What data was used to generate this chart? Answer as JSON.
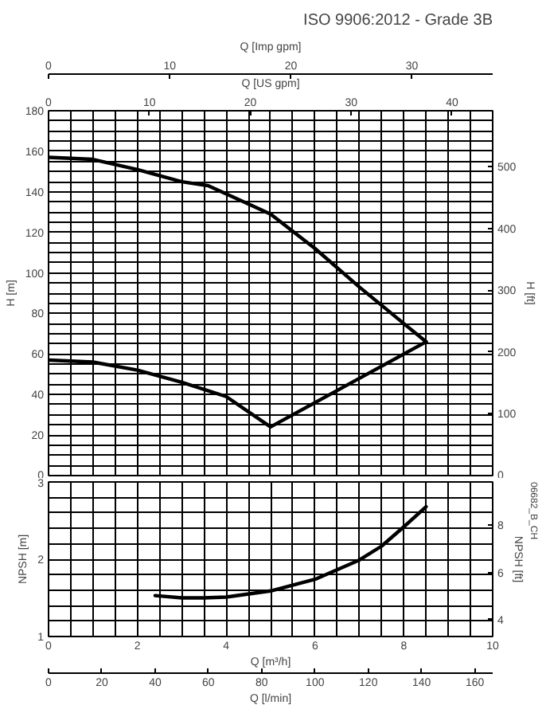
{
  "chart_data": [
    {
      "type": "line",
      "title": "ISO 9906:2012 - Grade 3B",
      "ylabel": "H [m]",
      "y2label": "H [ft]",
      "xlabel": "Q [US gpm]",
      "x2label": "Q [Imp gpm]",
      "xlim": [
        0,
        44.03
      ],
      "xticks": [
        0,
        {
          "value": 2.2,
          "label": null
        },
        {
          "value": 4.4,
          "label": null
        },
        {
          "value": 6.6,
          "label": null
        },
        {
          "value": 8.81,
          "label": null
        },
        10,
        {
          "value": 11.01,
          "label": null
        },
        {
          "value": 13.21,
          "label": null
        },
        {
          "value": 15.41,
          "label": null
        },
        {
          "value": 17.61,
          "label": null
        },
        {
          "value": 19.81,
          "label": null
        },
        20,
        {
          "value": 22.01,
          "label": null
        },
        {
          "value": 24.22,
          "label": null
        },
        {
          "value": 26.42,
          "label": null
        },
        {
          "value": 28.62,
          "label": null
        },
        30,
        {
          "value": 30.82,
          "label": null
        },
        {
          "value": 33.02,
          "label": null
        },
        {
          "value": 35.22,
          "label": null
        },
        {
          "value": 37.43,
          "label": null
        },
        {
          "value": 39.63,
          "label": null
        },
        40,
        {
          "value": 41.83,
          "label": null
        },
        {
          "value": 44.03,
          "label": null
        }
      ],
      "ylim": [
        0,
        180
      ],
      "yticks": [
        0,
        {
          "value": 5,
          "label": null
        },
        {
          "value": 10,
          "label": null
        },
        {
          "value": 15,
          "label": null
        },
        20,
        {
          "value": 25,
          "label": null
        },
        {
          "value": 30,
          "label": null
        },
        {
          "value": 35,
          "label": null
        },
        40,
        {
          "value": 45,
          "label": null
        },
        {
          "value": 50,
          "label": null
        },
        {
          "value": 55,
          "label": null
        },
        60,
        {
          "value": 65,
          "label": null
        },
        {
          "value": 70,
          "label": null
        },
        {
          "value": 75,
          "label": null
        },
        80,
        {
          "value": 85,
          "label": null
        },
        {
          "value": 90,
          "label": null
        },
        {
          "value": 95,
          "label": null
        },
        100,
        {
          "value": 105,
          "label": null
        },
        {
          "value": 110,
          "label": null
        },
        {
          "value": 115,
          "label": null
        },
        120,
        {
          "value": 125,
          "label": null
        },
        {
          "value": 130,
          "label": null
        },
        {
          "value": 135,
          "label": null
        },
        140,
        {
          "value": 145,
          "label": null
        },
        {
          "value": 150,
          "label": null
        },
        {
          "value": 155,
          "label": null
        },
        160,
        {
          "value": 165,
          "label": null
        },
        {
          "value": 170,
          "label": null
        },
        {
          "value": 175,
          "label": null
        },
        180
      ],
      "y2lim": [
        0,
        590.55
      ],
      "y2ticks": [
        0,
        100,
        200,
        300,
        400,
        500
      ],
      "x2lim": [
        0,
        36.66
      ],
      "x2ticks": [
        0,
        10,
        20,
        30
      ],
      "grid": true,
      "series": [
        {
          "color": "#000000",
          "x": [
            0,
            4.4,
            8.81,
            13.21,
            15.85,
            22.01,
            26.42,
            30.82,
            35.22,
            37.43
          ],
          "values": [
            157,
            156,
            151,
            145,
            143,
            129,
            112,
            93,
            75,
            66
          ]
        },
        {
          "color": "#000000",
          "x": [
            0,
            4.4,
            8.81,
            13.21,
            17.61,
            22.01,
            30.82,
            37.43
          ],
          "values": [
            57,
            56,
            52,
            46,
            39,
            24,
            48,
            66
          ]
        }
      ]
    },
    {
      "type": "line",
      "ylabel": "NPSH [m]",
      "y2label": "NPSH [ft]",
      "xlabel": "Q [m³/h]",
      "x2label": "Q [l/min]",
      "xlim": [
        0,
        10
      ],
      "xticks": [
        0,
        {
          "value": 0.5,
          "label": null
        },
        {
          "value": 1,
          "label": null
        },
        {
          "value": 1.5,
          "label": null
        },
        2,
        {
          "value": 2.5,
          "label": null
        },
        {
          "value": 3,
          "label": null
        },
        {
          "value": 3.5,
          "label": null
        },
        4,
        {
          "value": 4.5,
          "label": null
        },
        {
          "value": 5,
          "label": null
        },
        {
          "value": 5.5,
          "label": null
        },
        6,
        {
          "value": 6.5,
          "label": null
        },
        {
          "value": 7,
          "label": null
        },
        {
          "value": 7.5,
          "label": null
        },
        8,
        {
          "value": 8.5,
          "label": null
        },
        {
          "value": 9,
          "label": null
        },
        {
          "value": 9.5,
          "label": null
        },
        10
      ],
      "ylim": [
        1,
        3
      ],
      "yticks": [
        1,
        {
          "value": 1.2,
          "label": null
        },
        {
          "value": 1.4,
          "label": null
        },
        {
          "value": 1.6,
          "label": null
        },
        {
          "value": 1.8,
          "label": null
        },
        2,
        {
          "value": 2.2,
          "label": null
        },
        {
          "value": 2.4,
          "label": null
        },
        {
          "value": 2.6,
          "label": null
        },
        {
          "value": 2.8,
          "label": null
        },
        3
      ],
      "y2lim": [
        3.281,
        9.843
      ],
      "y2ticks": [
        4,
        6,
        8
      ],
      "x2lim": [
        0,
        166.67
      ],
      "x2ticks": [
        0,
        20,
        40,
        60,
        80,
        100,
        120,
        140,
        160
      ],
      "grid": true,
      "annotations": [
        "06682_B_CH"
      ],
      "series": [
        {
          "color": "#000000",
          "x": [
            2.4,
            3,
            3.5,
            4,
            5,
            6,
            7,
            7.5,
            8,
            8.5
          ],
          "values": [
            1.53,
            1.5,
            1.5,
            1.51,
            1.59,
            1.74,
            1.99,
            2.17,
            2.42,
            2.68
          ]
        }
      ]
    }
  ]
}
